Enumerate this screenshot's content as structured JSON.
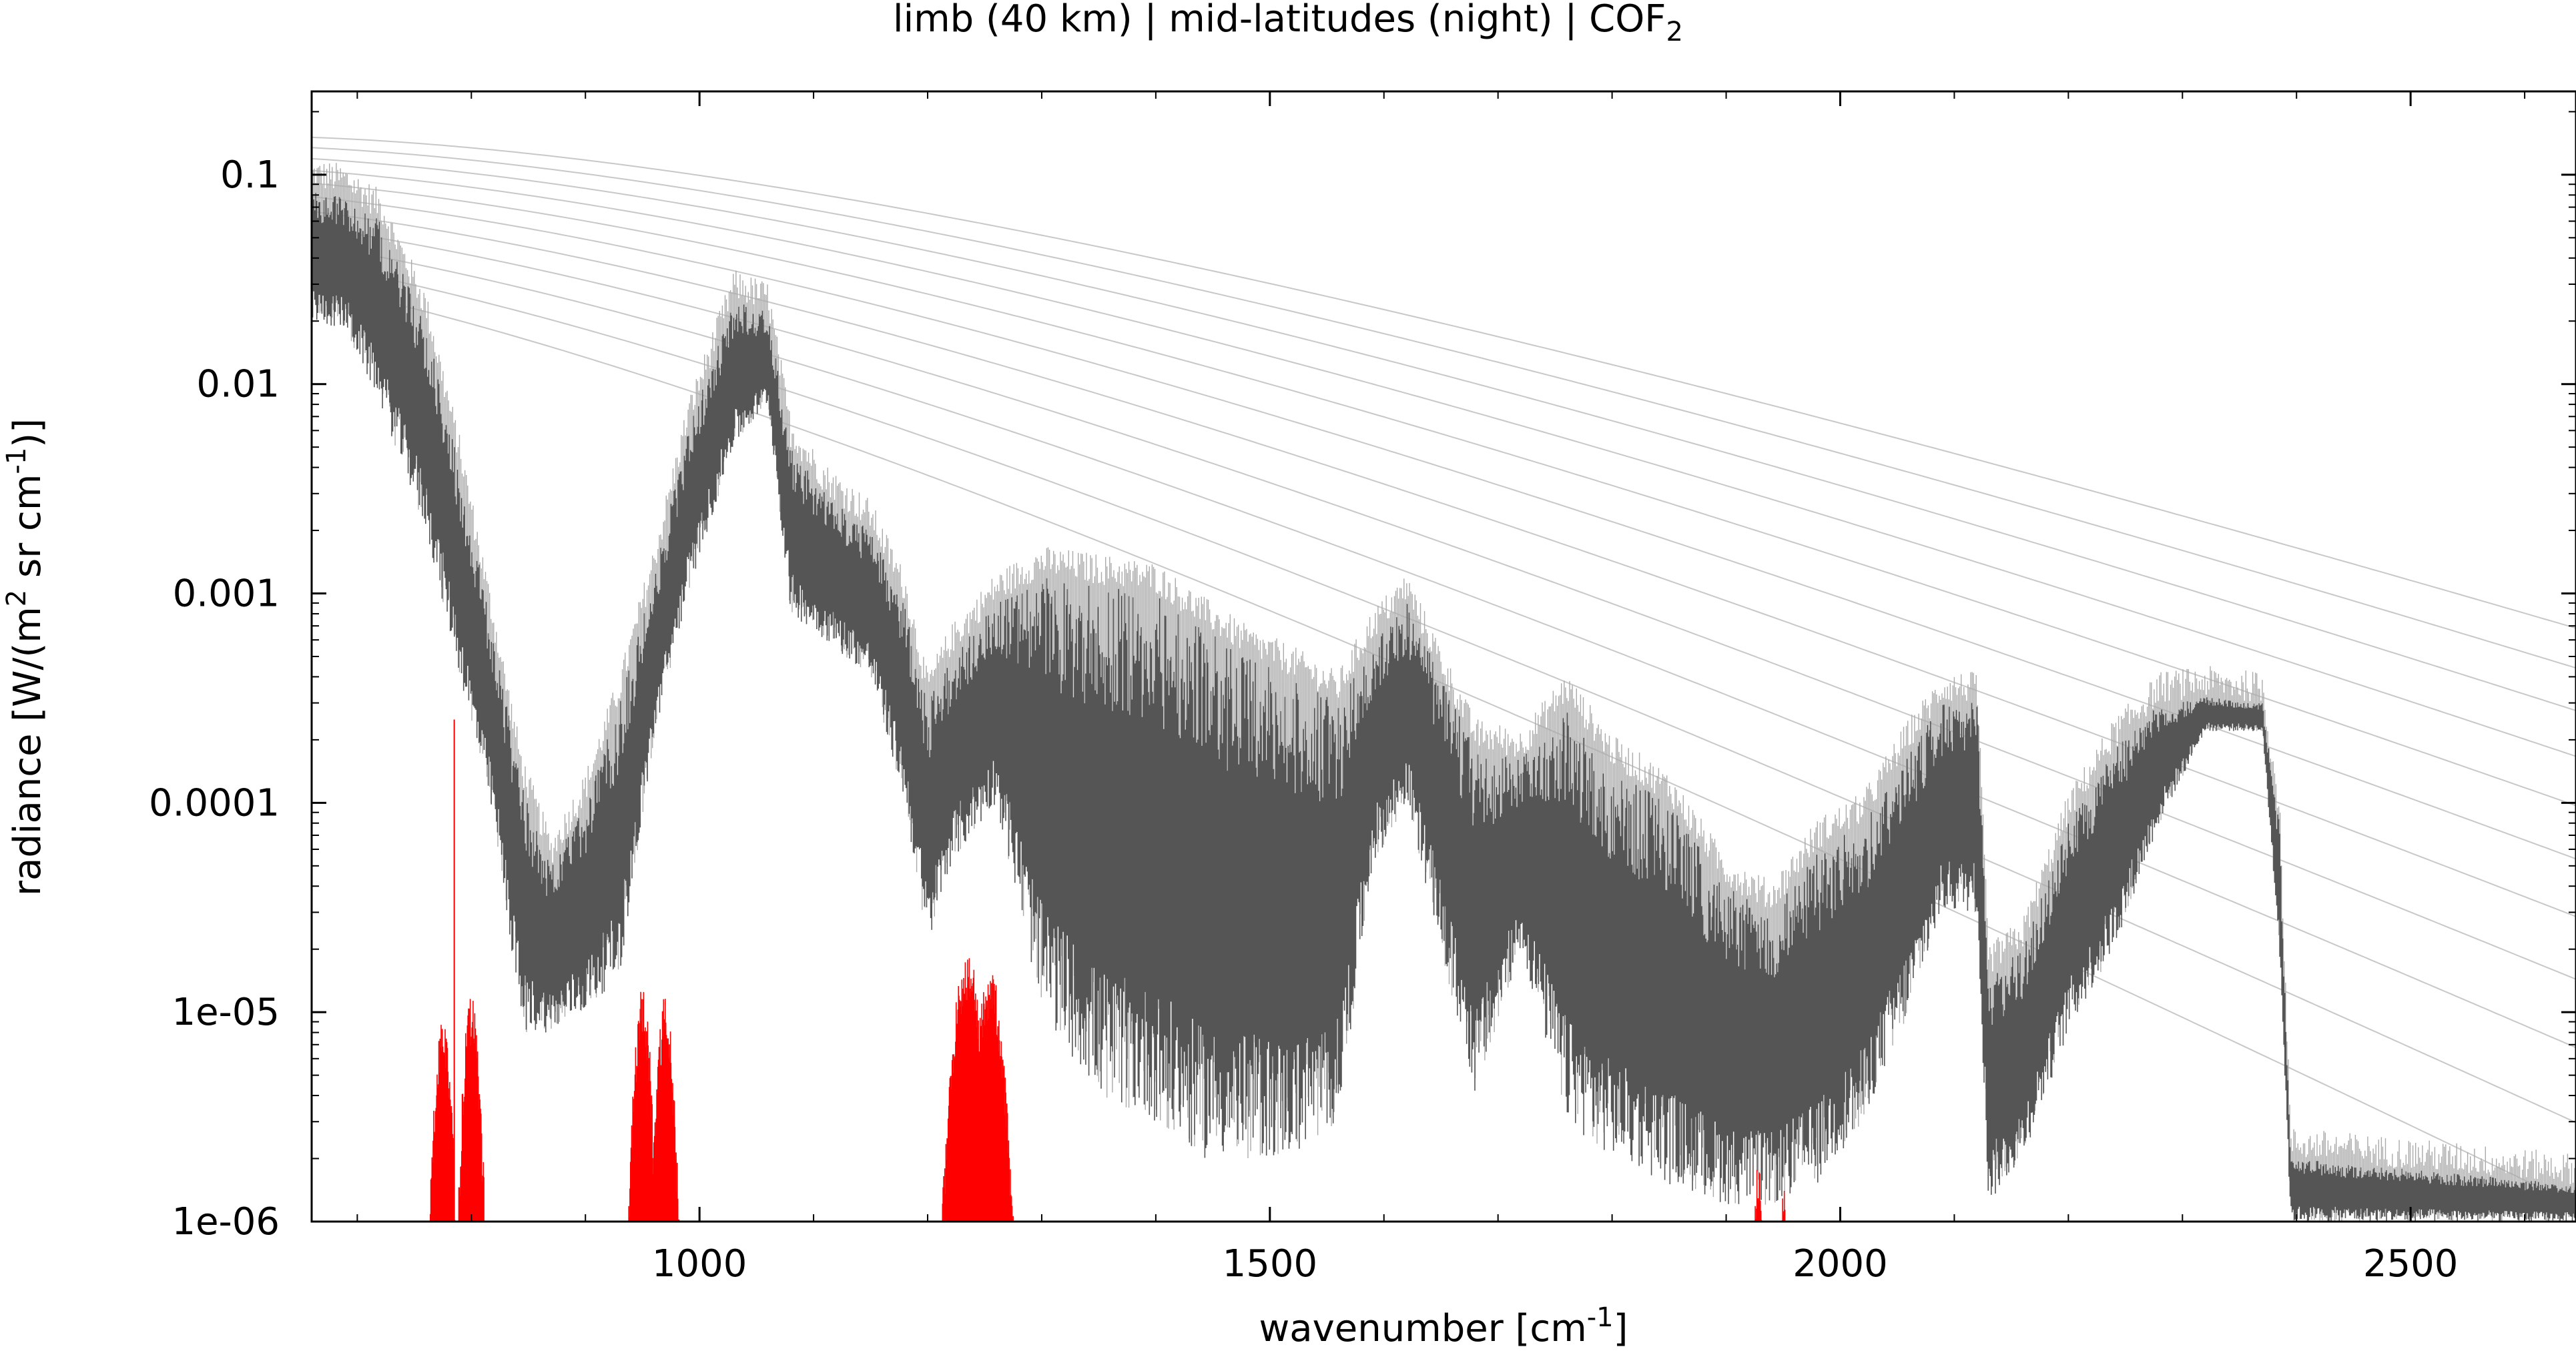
{
  "chart_data": {
    "type": "line",
    "title_main": "limb (40 km) | mid-latitudes (night) | COF",
    "title_sub": "2",
    "xlabel_main": "wavenumber [cm",
    "xlabel_sup": "-1",
    "xlabel_end": "]",
    "ylabel_a": "radiance [W/(m",
    "ylabel_sup1": "2",
    "ylabel_b": " sr cm",
    "ylabel_sup2": "-1",
    "ylabel_c": ")]",
    "x_scale": "linear",
    "y_scale": "log",
    "xlim": [
      660,
      2645
    ],
    "ylim": [
      1e-06,
      0.25
    ],
    "x_ticks": [
      {
        "value": 1000,
        "label": "1000"
      },
      {
        "value": 1500,
        "label": "1500"
      },
      {
        "value": 2000,
        "label": "2000"
      },
      {
        "value": 2500,
        "label": "2500"
      }
    ],
    "y_ticks": [
      {
        "value": 0.1,
        "label": "0.1"
      },
      {
        "value": 0.01,
        "label": "0.01"
      },
      {
        "value": 0.001,
        "label": "0.001"
      },
      {
        "value": 0.0001,
        "label": "0.0001"
      },
      {
        "value": 1e-05,
        "label": "1e-05"
      },
      {
        "value": 1e-06,
        "label": "1e-06"
      }
    ],
    "grid": false,
    "legend": "none",
    "series": [
      {
        "role": "total radiance",
        "color": "#555555",
        "envelope_top": [
          [
            660,
            0.085
          ],
          [
            690,
            0.08
          ],
          [
            720,
            0.06
          ],
          [
            760,
            0.02
          ],
          [
            790,
            0.004
          ],
          [
            820,
            0.0006
          ],
          [
            845,
            0.00012
          ],
          [
            870,
            5e-05
          ],
          [
            900,
            0.0001
          ],
          [
            930,
            0.0003
          ],
          [
            960,
            0.0012
          ],
          [
            990,
            0.006
          ],
          [
            1030,
            0.025
          ],
          [
            1060,
            0.022
          ],
          [
            1080,
            0.005
          ],
          [
            1110,
            0.003
          ],
          [
            1150,
            0.002
          ],
          [
            1180,
            0.0009
          ],
          [
            1200,
            0.0003
          ],
          [
            1220,
            0.0005
          ],
          [
            1260,
            0.0009
          ],
          [
            1300,
            0.0012
          ],
          [
            1350,
            0.0011
          ],
          [
            1400,
            0.001
          ],
          [
            1440,
            0.0007
          ],
          [
            1480,
            0.0005
          ],
          [
            1520,
            0.0004
          ],
          [
            1560,
            0.0003
          ],
          [
            1590,
            0.0006
          ],
          [
            1620,
            0.0009
          ],
          [
            1650,
            0.0004
          ],
          [
            1680,
            0.00018
          ],
          [
            1720,
            0.00016
          ],
          [
            1760,
            0.0003
          ],
          [
            1800,
            0.00015
          ],
          [
            1850,
            0.0001
          ],
          [
            1900,
            4e-05
          ],
          [
            1940,
            3e-05
          ],
          [
            1980,
            6e-05
          ],
          [
            2020,
            8e-05
          ],
          [
            2060,
            0.00018
          ],
          [
            2090,
            0.0003
          ],
          [
            2120,
            0.0003
          ],
          [
            2130,
            1.5e-05
          ],
          [
            2160,
            2e-05
          ],
          [
            2200,
            8e-05
          ],
          [
            2240,
            0.00018
          ],
          [
            2280,
            0.0003
          ],
          [
            2320,
            0.00032
          ],
          [
            2370,
            0.0003
          ],
          [
            2385,
            8e-05
          ],
          [
            2395,
            2e-06
          ],
          [
            2645,
            1.5e-06
          ]
        ],
        "envelope_bottom": [
          [
            660,
            0.02
          ],
          [
            690,
            0.018
          ],
          [
            720,
            0.008
          ],
          [
            760,
            0.002
          ],
          [
            790,
            0.0004
          ],
          [
            820,
            8e-05
          ],
          [
            845,
            8e-06
          ],
          [
            870,
            8e-06
          ],
          [
            900,
            1e-05
          ],
          [
            930,
            1.5e-05
          ],
          [
            960,
            0.0002
          ],
          [
            990,
            0.001
          ],
          [
            1030,
            0.005
          ],
          [
            1060,
            0.008
          ],
          [
            1080,
            0.0008
          ],
          [
            1110,
            0.0006
          ],
          [
            1150,
            0.0004
          ],
          [
            1180,
            0.0001
          ],
          [
            1200,
            2e-05
          ],
          [
            1220,
            5e-05
          ],
          [
            1260,
            0.0001
          ],
          [
            1300,
            1e-05
          ],
          [
            1350,
            4e-06
          ],
          [
            1400,
            3e-06
          ],
          [
            1440,
            2e-06
          ],
          [
            1480,
            2e-06
          ],
          [
            1520,
            2e-06
          ],
          [
            1560,
            3e-06
          ],
          [
            1590,
            5e-05
          ],
          [
            1620,
            0.0001
          ],
          [
            1650,
            2e-05
          ],
          [
            1680,
            4e-06
          ],
          [
            1720,
            2e-05
          ],
          [
            1760,
            3e-06
          ],
          [
            1800,
            2e-06
          ],
          [
            1850,
            1.5e-06
          ],
          [
            1900,
            1.2e-06
          ],
          [
            1940,
            1.2e-06
          ],
          [
            1980,
            1.5e-06
          ],
          [
            2020,
            3e-06
          ],
          [
            2060,
            1e-05
          ],
          [
            2090,
            3e-05
          ],
          [
            2120,
            3e-05
          ],
          [
            2130,
            1.2e-06
          ],
          [
            2160,
            2e-06
          ],
          [
            2200,
            8e-06
          ],
          [
            2240,
            2e-05
          ],
          [
            2280,
            8e-05
          ],
          [
            2320,
            0.00022
          ],
          [
            2370,
            0.00022
          ],
          [
            2385,
            2e-05
          ],
          [
            2395,
            1e-06
          ],
          [
            2645,
            1e-06
          ]
        ]
      },
      {
        "role": "COF2 contribution",
        "color": "#ff0000",
        "peaks": [
          {
            "x": 775,
            "width": 14,
            "top": 1e-05
          },
          {
            "x": 800,
            "width": 14,
            "top": 1.2e-05
          },
          {
            "x": 950,
            "width": 14,
            "top": 1.3e-05
          },
          {
            "x": 970,
            "width": 14,
            "top": 1.2e-05
          },
          {
            "x": 1235,
            "width": 24,
            "top": 2e-05
          },
          {
            "x": 1255,
            "width": 22,
            "top": 1.6e-05
          },
          {
            "x": 1928,
            "width": 8,
            "top": 2e-06
          },
          {
            "x": 1950,
            "width": 8,
            "top": 1.6e-06
          }
        ]
      }
    ],
    "reference_curves": {
      "color": "#c8c8c8",
      "type": "blackbody",
      "temperatures_K": [
        200,
        210,
        220,
        230,
        240,
        250,
        260,
        270,
        280,
        290,
        300
      ]
    }
  }
}
